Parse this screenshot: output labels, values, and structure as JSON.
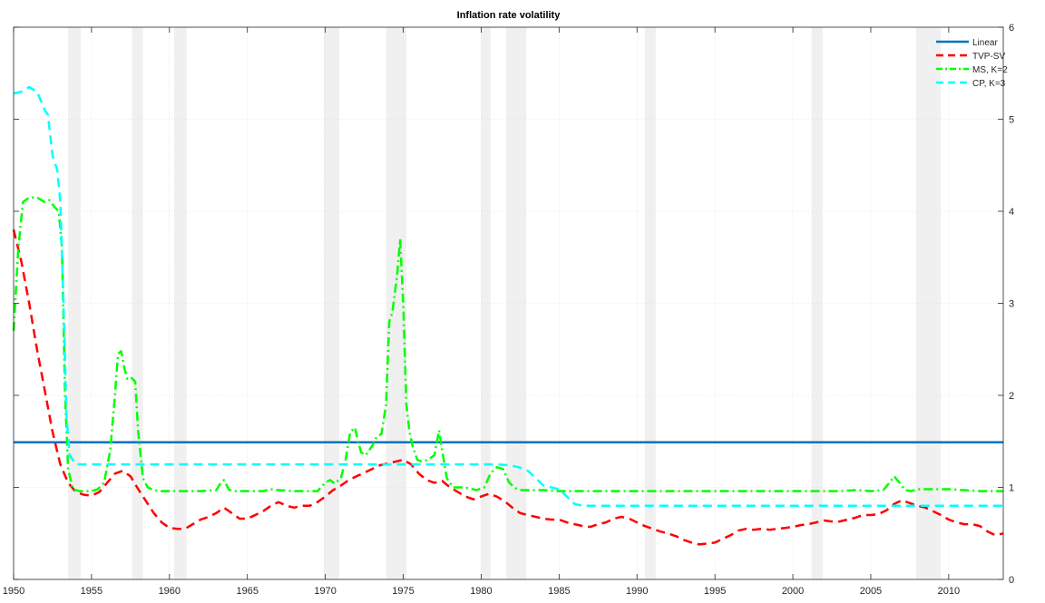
{
  "chart_data": {
    "type": "line",
    "title": "Inflation rate volatility",
    "xlabel": "",
    "ylabel": "",
    "xlim": [
      1950,
      2013.5
    ],
    "ylim": [
      0,
      6
    ],
    "x_ticks": [
      1950,
      1955,
      1960,
      1965,
      1970,
      1975,
      1980,
      1985,
      1990,
      1995,
      2000,
      2005,
      2010
    ],
    "y_ticks": [
      0,
      1,
      2,
      3,
      4,
      5,
      6
    ],
    "y_axis_side": "right",
    "grid": true,
    "legend_position": "top-right",
    "recession_bands": [
      [
        1953.5,
        1954.3
      ],
      [
        1957.6,
        1958.3
      ],
      [
        1960.3,
        1961.1
      ],
      [
        1969.9,
        1970.9
      ],
      [
        1973.9,
        1975.2
      ],
      [
        1980.0,
        1980.6
      ],
      [
        1981.6,
        1982.9
      ],
      [
        1990.5,
        1991.2
      ],
      [
        2001.2,
        2001.9
      ],
      [
        2007.9,
        2009.5
      ]
    ],
    "series": [
      {
        "name": "Linear",
        "color": "#0072BD",
        "style": "solid",
        "x": [
          1950,
          2013.5
        ],
        "y": [
          1.49,
          1.49
        ]
      },
      {
        "name": "TVP-SV",
        "color": "#FF0000",
        "style": "dashed",
        "x": [
          1950,
          1950.5,
          1951,
          1951.5,
          1952,
          1952.5,
          1953,
          1953.5,
          1954,
          1954.5,
          1955,
          1955.5,
          1956,
          1956.5,
          1957,
          1957.5,
          1958,
          1958.5,
          1959,
          1959.5,
          1960,
          1960.5,
          1961,
          1961.5,
          1962,
          1962.5,
          1963,
          1963.5,
          1964,
          1964.5,
          1965,
          1965.5,
          1966,
          1966.5,
          1967,
          1967.5,
          1968,
          1968.5,
          1969,
          1969.5,
          1970,
          1970.5,
          1971,
          1971.5,
          1972,
          1972.5,
          1973,
          1973.5,
          1974,
          1974.5,
          1975,
          1975.5,
          1976,
          1976.5,
          1977,
          1977.5,
          1978,
          1978.5,
          1979,
          1979.5,
          1980,
          1980.5,
          1981,
          1981.5,
          1982,
          1982.5,
          1983,
          1983.5,
          1984,
          1984.5,
          1985,
          1985.5,
          1986,
          1986.5,
          1987,
          1987.5,
          1988,
          1988.5,
          1989,
          1989.5,
          1990,
          1990.5,
          1991,
          1991.5,
          1992,
          1992.5,
          1993,
          1993.5,
          1994,
          1994.5,
          1995,
          1995.5,
          1996,
          1996.5,
          1997,
          1997.5,
          1998,
          1998.5,
          1999,
          1999.5,
          2000,
          2000.5,
          2001,
          2001.5,
          2002,
          2002.5,
          2003,
          2003.5,
          2004,
          2004.5,
          2005,
          2005.5,
          2006,
          2006.5,
          2007,
          2007.5,
          2008,
          2008.5,
          2009,
          2009.5,
          2010,
          2010.5,
          2011,
          2011.5,
          2012,
          2012.5,
          2013,
          2013.5
        ],
        "y": [
          3.8,
          3.45,
          3.0,
          2.5,
          2.05,
          1.6,
          1.25,
          1.05,
          0.95,
          0.92,
          0.91,
          0.95,
          1.05,
          1.15,
          1.18,
          1.12,
          0.98,
          0.85,
          0.72,
          0.62,
          0.56,
          0.55,
          0.55,
          0.6,
          0.65,
          0.68,
          0.72,
          0.78,
          0.72,
          0.66,
          0.66,
          0.7,
          0.74,
          0.8,
          0.84,
          0.8,
          0.78,
          0.8,
          0.8,
          0.84,
          0.9,
          0.97,
          1.02,
          1.08,
          1.12,
          1.16,
          1.2,
          1.24,
          1.26,
          1.28,
          1.3,
          1.25,
          1.15,
          1.08,
          1.05,
          1.07,
          1.0,
          0.95,
          0.9,
          0.87,
          0.9,
          0.93,
          0.9,
          0.85,
          0.78,
          0.72,
          0.7,
          0.68,
          0.66,
          0.65,
          0.65,
          0.62,
          0.6,
          0.58,
          0.57,
          0.6,
          0.62,
          0.66,
          0.68,
          0.66,
          0.62,
          0.58,
          0.55,
          0.52,
          0.5,
          0.47,
          0.43,
          0.4,
          0.38,
          0.39,
          0.4,
          0.44,
          0.48,
          0.53,
          0.55,
          0.54,
          0.55,
          0.54,
          0.55,
          0.56,
          0.57,
          0.59,
          0.6,
          0.62,
          0.64,
          0.63,
          0.63,
          0.65,
          0.67,
          0.7,
          0.7,
          0.71,
          0.75,
          0.82,
          0.86,
          0.83,
          0.8,
          0.78,
          0.74,
          0.7,
          0.65,
          0.62,
          0.6,
          0.6,
          0.58,
          0.52,
          0.48,
          0.5
        ]
      },
      {
        "name": "MS, K=2",
        "color": "#00FF00",
        "style": "dash-dot",
        "x": [
          1950,
          1950.3,
          1950.6,
          1951,
          1951.5,
          1952,
          1952.3,
          1952.6,
          1952.9,
          1953.1,
          1953.3,
          1953.5,
          1953.8,
          1954.2,
          1954.6,
          1955,
          1955.4,
          1955.8,
          1956.2,
          1956.5,
          1956.7,
          1956.9,
          1957.1,
          1957.3,
          1957.5,
          1957.8,
          1958.0,
          1958.3,
          1958.6,
          1959,
          1959.5,
          1960,
          1961,
          1962,
          1963,
          1963.3,
          1963.5,
          1963.8,
          1964,
          1965,
          1966,
          1966.5,
          1967,
          1968,
          1969,
          1969.5,
          1970,
          1970.3,
          1970.6,
          1971,
          1971.3,
          1971.6,
          1971.9,
          1972.1,
          1972.3,
          1972.6,
          1973,
          1973.3,
          1973.6,
          1973.9,
          1974.1,
          1974.3,
          1974.6,
          1974.8,
          1975.0,
          1975.2,
          1975.4,
          1975.6,
          1975.9,
          1976.2,
          1976.6,
          1977.0,
          1977.3,
          1977.5,
          1977.8,
          1978.2,
          1978.7,
          1979.2,
          1979.7,
          1980.2,
          1980.6,
          1981.0,
          1981.4,
          1981.8,
          1982.2,
          1982.6,
          1983,
          1984,
          1985,
          1986,
          1987,
          1988,
          1989,
          1990,
          1991,
          1992,
          1993,
          1994,
          1995,
          1996,
          1997,
          1998,
          1999,
          2000,
          2001,
          2002,
          2003,
          2004,
          2005,
          2005.8,
          2006.2,
          2006.5,
          2006.8,
          2007.2,
          2007.6,
          2008,
          2009,
          2010,
          2011,
          2012,
          2013,
          2013.5
        ],
        "y": [
          2.7,
          3.6,
          4.1,
          4.15,
          4.15,
          4.1,
          4.12,
          4.05,
          4.0,
          3.6,
          2.0,
          1.2,
          0.98,
          0.96,
          0.96,
          0.96,
          0.98,
          1.05,
          1.4,
          2.0,
          2.45,
          2.48,
          2.3,
          2.18,
          2.2,
          2.15,
          1.6,
          1.1,
          1.0,
          0.97,
          0.96,
          0.96,
          0.96,
          0.96,
          0.97,
          1.05,
          1.08,
          0.98,
          0.96,
          0.96,
          0.96,
          0.98,
          0.97,
          0.96,
          0.96,
          0.96,
          1.05,
          1.08,
          1.04,
          1.1,
          1.3,
          1.6,
          1.65,
          1.5,
          1.38,
          1.35,
          1.45,
          1.55,
          1.58,
          1.9,
          2.8,
          2.9,
          3.3,
          3.7,
          3.0,
          1.9,
          1.6,
          1.45,
          1.3,
          1.28,
          1.3,
          1.35,
          1.62,
          1.4,
          1.1,
          1.0,
          1.0,
          0.99,
          0.97,
          1.0,
          1.15,
          1.22,
          1.2,
          1.05,
          0.99,
          0.97,
          0.97,
          0.97,
          0.96,
          0.96,
          0.96,
          0.96,
          0.96,
          0.96,
          0.96,
          0.96,
          0.96,
          0.96,
          0.96,
          0.96,
          0.96,
          0.96,
          0.96,
          0.96,
          0.96,
          0.96,
          0.96,
          0.97,
          0.96,
          0.97,
          1.05,
          1.12,
          1.06,
          0.97,
          0.96,
          0.98,
          0.98,
          0.98,
          0.97,
          0.96,
          0.96,
          0.96
        ]
      },
      {
        "name": "CP, K=3",
        "color": "#00FFFF",
        "style": "dashed",
        "x": [
          1950,
          1950.5,
          1951,
          1951.5,
          1952,
          1952.2,
          1952.5,
          1952.8,
          1953.0,
          1953.2,
          1953.4,
          1953.6,
          1953.8,
          1954.0,
          1954.5,
          1955,
          1960,
          1965,
          1970,
          1975,
          1980,
          1981,
          1981.8,
          1982.4,
          1983,
          1984,
          1984.5,
          1985,
          1985.5,
          1986,
          1986.5,
          1987,
          1990,
          2000,
          2005,
          2006,
          2010,
          2013.5
        ],
        "y": [
          5.28,
          5.3,
          5.35,
          5.3,
          5.1,
          5.05,
          4.6,
          4.45,
          4.1,
          3.0,
          1.75,
          1.35,
          1.3,
          1.25,
          1.25,
          1.25,
          1.25,
          1.25,
          1.25,
          1.25,
          1.25,
          1.25,
          1.24,
          1.22,
          1.18,
          1.02,
          1.0,
          0.98,
          0.9,
          0.82,
          0.8,
          0.8,
          0.8,
          0.8,
          0.8,
          0.8,
          0.8,
          0.8
        ]
      }
    ]
  }
}
